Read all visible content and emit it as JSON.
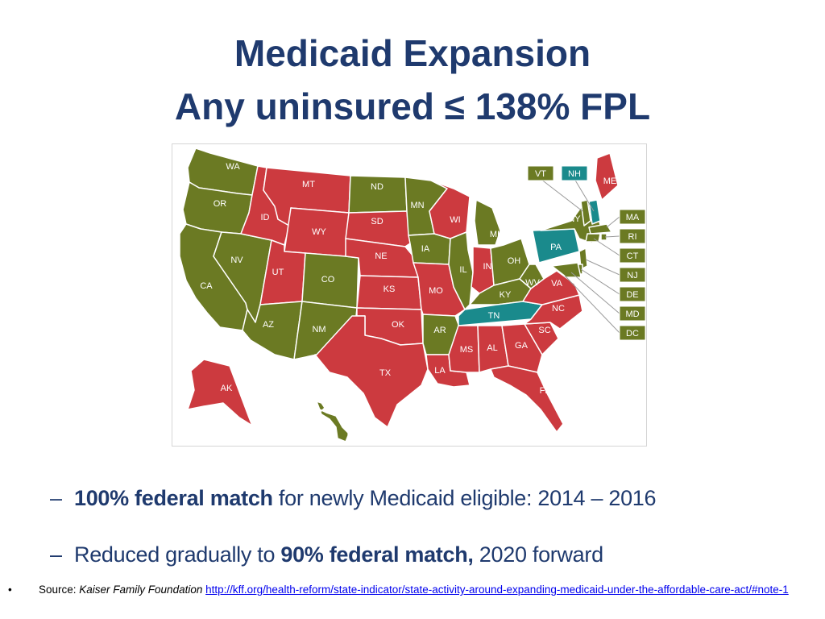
{
  "title": {
    "line1": "Medicaid Expansion",
    "line2": "Any uninsured ≤ 138% FPL"
  },
  "colors": {
    "expansion": "#6b7a23",
    "not_expanding": "#cc3a3f",
    "pending": "#1a8a8c"
  },
  "map": {
    "states": [
      {
        "abbr": "WA",
        "status": "expansion"
      },
      {
        "abbr": "OR",
        "status": "expansion"
      },
      {
        "abbr": "CA",
        "status": "expansion"
      },
      {
        "abbr": "NV",
        "status": "expansion"
      },
      {
        "abbr": "ID",
        "status": "not_expanding"
      },
      {
        "abbr": "MT",
        "status": "not_expanding"
      },
      {
        "abbr": "WY",
        "status": "not_expanding"
      },
      {
        "abbr": "UT",
        "status": "not_expanding"
      },
      {
        "abbr": "AZ",
        "status": "expansion"
      },
      {
        "abbr": "CO",
        "status": "expansion"
      },
      {
        "abbr": "NM",
        "status": "expansion"
      },
      {
        "abbr": "ND",
        "status": "expansion"
      },
      {
        "abbr": "SD",
        "status": "not_expanding"
      },
      {
        "abbr": "NE",
        "status": "not_expanding"
      },
      {
        "abbr": "KS",
        "status": "not_expanding"
      },
      {
        "abbr": "OK",
        "status": "not_expanding"
      },
      {
        "abbr": "TX",
        "status": "not_expanding"
      },
      {
        "abbr": "MN",
        "status": "expansion"
      },
      {
        "abbr": "IA",
        "status": "expansion"
      },
      {
        "abbr": "MO",
        "status": "not_expanding"
      },
      {
        "abbr": "AR",
        "status": "expansion"
      },
      {
        "abbr": "LA",
        "status": "not_expanding"
      },
      {
        "abbr": "WI",
        "status": "not_expanding"
      },
      {
        "abbr": "IL",
        "status": "expansion"
      },
      {
        "abbr": "MI",
        "status": "expansion"
      },
      {
        "abbr": "IN",
        "status": "not_expanding"
      },
      {
        "abbr": "OH",
        "status": "expansion"
      },
      {
        "abbr": "KY",
        "status": "expansion"
      },
      {
        "abbr": "TN",
        "status": "pending"
      },
      {
        "abbr": "MS",
        "status": "not_expanding"
      },
      {
        "abbr": "AL",
        "status": "not_expanding"
      },
      {
        "abbr": "GA",
        "status": "not_expanding"
      },
      {
        "abbr": "FL",
        "status": "not_expanding"
      },
      {
        "abbr": "SC",
        "status": "not_expanding"
      },
      {
        "abbr": "NC",
        "status": "not_expanding"
      },
      {
        "abbr": "VA",
        "status": "not_expanding"
      },
      {
        "abbr": "WV",
        "status": "expansion"
      },
      {
        "abbr": "PA",
        "status": "pending"
      },
      {
        "abbr": "NY",
        "status": "expansion"
      },
      {
        "abbr": "ME",
        "status": "not_expanding"
      },
      {
        "abbr": "AK",
        "status": "not_expanding"
      },
      {
        "abbr": "HI",
        "status": "expansion"
      },
      {
        "abbr": "VT",
        "status": "expansion"
      },
      {
        "abbr": "NH",
        "status": "pending"
      },
      {
        "abbr": "MA",
        "status": "expansion"
      },
      {
        "abbr": "RI",
        "status": "expansion"
      },
      {
        "abbr": "CT",
        "status": "expansion"
      },
      {
        "abbr": "NJ",
        "status": "expansion"
      },
      {
        "abbr": "DE",
        "status": "expansion"
      },
      {
        "abbr": "MD",
        "status": "expansion"
      },
      {
        "abbr": "DC",
        "status": "expansion"
      }
    ]
  },
  "bullets": [
    {
      "dash": "–",
      "bold": "100% federal match",
      "rest": " for newly Medicaid eligible: 2014 – 2016",
      "pre": ""
    },
    {
      "dash": "–",
      "pre": "Reduced gradually to ",
      "bold": "90% federal match,",
      "rest": " 2020 forward"
    }
  ],
  "source": {
    "bullet": "•",
    "label": "Source: ",
    "org": "Kaiser Family Foundation",
    "url": "http://kff.org/health-reform/state-indicator/state-activity-around-expanding-medicaid-under-the-affordable-care-act/#note-1"
  }
}
